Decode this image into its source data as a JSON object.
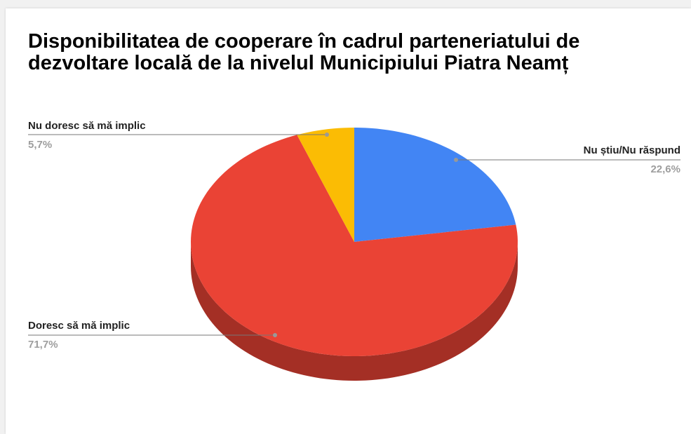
{
  "chart_data": {
    "type": "pie",
    "title": "Disponibilitatea de cooperare în cadrul parteneriatului de dezvoltare locală de la nivelul Municipiului Piatra Neamț",
    "categories": [
      "Nu știu/Nu răspund",
      "Doresc să mă implic",
      "Nu doresc să mă implic"
    ],
    "values": [
      22.6,
      71.7,
      5.7
    ],
    "value_labels": [
      "22,6%",
      "71,7%",
      "5,7%"
    ],
    "colors": [
      "#4285f4",
      "#ea4335",
      "#fbbc04"
    ],
    "three_d": true
  }
}
